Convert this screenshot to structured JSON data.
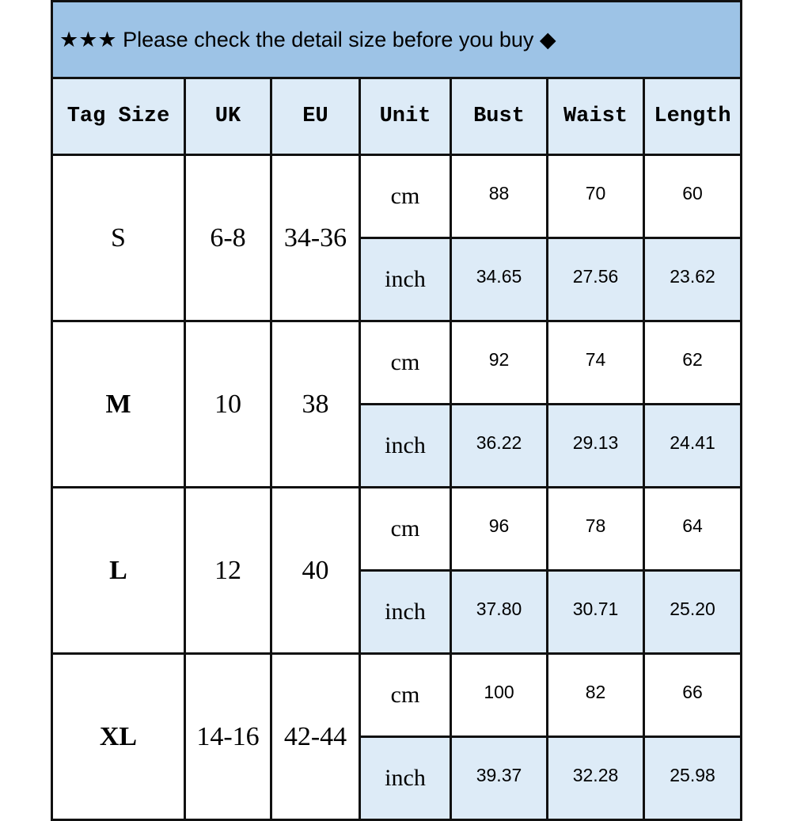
{
  "title": "★★★ Please check the detail size before you buy ◆",
  "colors": {
    "title_bg": "#9dc3e6",
    "header_bg": "#ddebf7",
    "inch_row_bg": "#ddebf7"
  },
  "headers": [
    "Tag Size",
    "UK",
    "EU",
    "Unit",
    "Bust",
    "Waist",
    "Length"
  ],
  "sizes": [
    {
      "tag": "S",
      "uk": "6-8",
      "eu": "34-36",
      "cm": {
        "unit": "cm",
        "bust": "88",
        "waist": "70",
        "length": "60"
      },
      "inch": {
        "unit": "inch",
        "bust": "34.65",
        "waist": "27.56",
        "length": "23.62"
      }
    },
    {
      "tag": "M",
      "uk": "10",
      "eu": "38",
      "cm": {
        "unit": "cm",
        "bust": "92",
        "waist": "74",
        "length": "62"
      },
      "inch": {
        "unit": "inch",
        "bust": "36.22",
        "waist": "29.13",
        "length": "24.41"
      }
    },
    {
      "tag": "L",
      "uk": "12",
      "eu": "40",
      "cm": {
        "unit": "cm",
        "bust": "96",
        "waist": "78",
        "length": "64"
      },
      "inch": {
        "unit": "inch",
        "bust": "37.80",
        "waist": "30.71",
        "length": "25.20"
      }
    },
    {
      "tag": "XL",
      "uk": "14-16",
      "eu": "42-44",
      "cm": {
        "unit": "cm",
        "bust": "100",
        "waist": "82",
        "length": "66"
      },
      "inch": {
        "unit": "inch",
        "bust": "39.37",
        "waist": "32.28",
        "length": "25.98"
      }
    }
  ]
}
